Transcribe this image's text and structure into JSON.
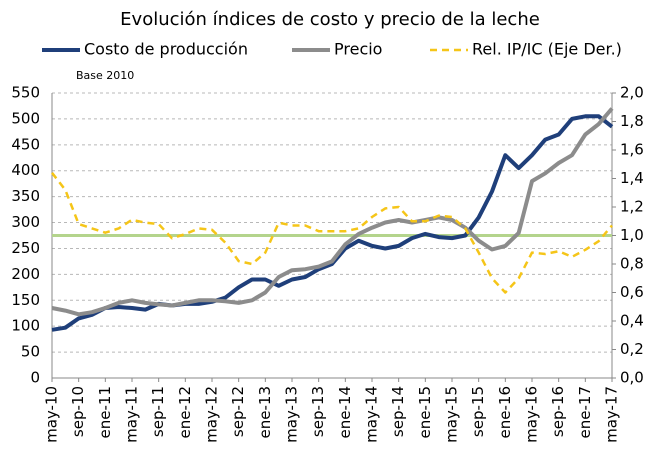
{
  "chart_data": {
    "type": "line",
    "title": "Evolución  índices de costo y precio de la leche",
    "annotation": "Base 2010",
    "categories": [
      "may-10",
      null,
      "sep-10",
      null,
      "ene-11",
      null,
      "may-11",
      null,
      "sep-11",
      null,
      "ene-12",
      null,
      "may-12",
      null,
      "sep-12",
      null,
      "ene-13",
      null,
      "may-13",
      null,
      "sep-13",
      null,
      "ene-14",
      null,
      "may-14",
      null,
      "sep-14",
      null,
      "ene-15",
      null,
      "may-15",
      null,
      "sep-15",
      null,
      "ene-16",
      null,
      "may-16",
      null,
      "sep-16",
      null,
      "ene-17",
      null,
      "may-17"
    ],
    "series": [
      {
        "name": "Costo de producción",
        "color": "#1f3f7a",
        "values": [
          93,
          97,
          115,
          122,
          135,
          137,
          135,
          132,
          143,
          140,
          143,
          143,
          147,
          155,
          175,
          190,
          190,
          178,
          190,
          195,
          210,
          220,
          250,
          265,
          255,
          250,
          255,
          270,
          278,
          272,
          270,
          275,
          310,
          360,
          430,
          405,
          430,
          460,
          470,
          500,
          505,
          505,
          485
        ]
      },
      {
        "name": "Precio",
        "color": "#8c8c8c",
        "values": [
          135,
          130,
          123,
          127,
          135,
          145,
          150,
          145,
          142,
          140,
          145,
          150,
          150,
          148,
          145,
          150,
          165,
          195,
          208,
          210,
          215,
          225,
          258,
          278,
          290,
          300,
          305,
          300,
          305,
          310,
          305,
          290,
          265,
          248,
          255,
          280,
          380,
          395,
          415,
          430,
          470,
          490,
          520
        ]
      },
      {
        "name": "Rel. IP/IC (Eje Der.)",
        "color": "#f5c518",
        "dashed": true,
        "axis": "y2",
        "values": [
          1.44,
          1.32,
          1.08,
          1.05,
          1.02,
          1.05,
          1.11,
          1.09,
          1.08,
          0.98,
          1.01,
          1.05,
          1.04,
          0.95,
          0.82,
          0.8,
          0.88,
          1.09,
          1.07,
          1.07,
          1.03,
          1.03,
          1.03,
          1.05,
          1.13,
          1.19,
          1.2,
          1.1,
          1.1,
          1.14,
          1.13,
          1.05,
          0.88,
          0.7,
          0.6,
          0.7,
          0.88,
          0.87,
          0.89,
          0.85,
          0.9,
          0.96,
          1.07
        ]
      }
    ],
    "reference_line": {
      "value": 1,
      "axis": "y2",
      "color": "#b4d48c"
    },
    "ylim": [
      0,
      550
    ],
    "yticks": [
      0,
      50,
      100,
      150,
      200,
      250,
      300,
      350,
      400,
      450,
      500,
      550
    ],
    "y2lim": [
      0,
      2
    ],
    "y2ticks": [
      {
        "value": 0,
        "label": "0,0"
      },
      {
        "value": 0.2,
        "label": "0,2"
      },
      {
        "value": 0.4,
        "label": "0,4"
      },
      {
        "value": 0.6,
        "label": "0,6"
      },
      {
        "value": 0.8,
        "label": "0,8"
      },
      {
        "value": 1,
        "label": "1,0"
      },
      {
        "value": 1.2,
        "label": "1,2"
      },
      {
        "value": 1.4,
        "label": "1,4"
      },
      {
        "value": 1.6,
        "label": "1,6"
      },
      {
        "value": 1.8,
        "label": "1,8"
      },
      {
        "value": 2,
        "label": "2,0"
      }
    ],
    "grid": true,
    "legend": "top"
  }
}
